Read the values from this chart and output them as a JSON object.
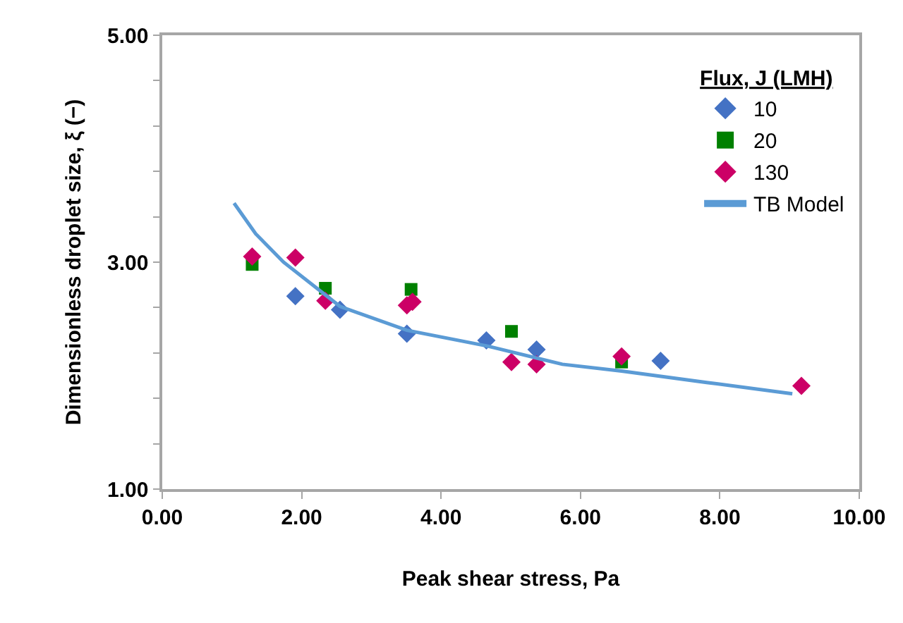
{
  "chart_data": {
    "type": "scatter",
    "xlabel": "Peak shear stress, Pa",
    "ylabel": "Dimensionless droplet size, ξ (−)",
    "legend_title": "Flux, J (LMH)",
    "legend": "top right",
    "xlim": [
      0,
      10
    ],
    "xticks": [
      {
        "value": 0,
        "label": "0.00"
      },
      {
        "value": 2,
        "label": "2.00"
      },
      {
        "value": 4,
        "label": "4.00"
      },
      {
        "value": 6,
        "label": "6.00"
      },
      {
        "value": 8,
        "label": "8.00"
      },
      {
        "value": 10,
        "label": "10.00"
      }
    ],
    "ylim": [
      1,
      5
    ],
    "yticks": [
      {
        "value": 1,
        "label": "1.00"
      },
      {
        "value": 1.4,
        "label": null
      },
      {
        "value": 1.8,
        "label": null
      },
      {
        "value": 2.2,
        "label": null
      },
      {
        "value": 2.6,
        "label": null
      },
      {
        "value": 3,
        "label": "3.00"
      },
      {
        "value": 3.4,
        "label": null
      },
      {
        "value": 3.8,
        "label": null
      },
      {
        "value": 4.2,
        "label": null
      },
      {
        "value": 4.6,
        "label": null
      },
      {
        "value": 5,
        "label": "5.00"
      }
    ],
    "series": [
      {
        "name": "10",
        "color": "#4472c4",
        "marker": "diamond",
        "x": [
          1.91,
          2.55,
          3.51,
          4.65,
          5.37,
          7.15
        ],
        "values": [
          2.7,
          2.58,
          2.37,
          2.31,
          2.23,
          2.13
        ]
      },
      {
        "name": "20",
        "color": "#008000",
        "marker": "square",
        "x": [
          1.29,
          2.34,
          3.57,
          5.01,
          6.59
        ],
        "values": [
          2.98,
          2.77,
          2.76,
          2.39,
          2.12
        ]
      },
      {
        "name": "130",
        "color": "#cc0066",
        "marker": "diamond",
        "x": [
          1.29,
          1.91,
          2.34,
          3.51,
          3.59,
          5.01,
          5.37,
          6.59,
          9.17
        ],
        "values": [
          3.05,
          3.04,
          2.66,
          2.62,
          2.65,
          2.12,
          2.1,
          2.17,
          1.91
        ]
      },
      {
        "name": "TB Model",
        "type": "line",
        "color": "#5b9bd5",
        "marker": "none",
        "x": [
          1.03,
          1.34,
          1.74,
          2.55,
          3.51,
          4.67,
          5.74,
          6.59,
          7.81,
          9.04
        ],
        "values": [
          3.52,
          3.25,
          3.0,
          2.61,
          2.4,
          2.26,
          2.1,
          2.04,
          1.94,
          1.84
        ]
      }
    ]
  }
}
